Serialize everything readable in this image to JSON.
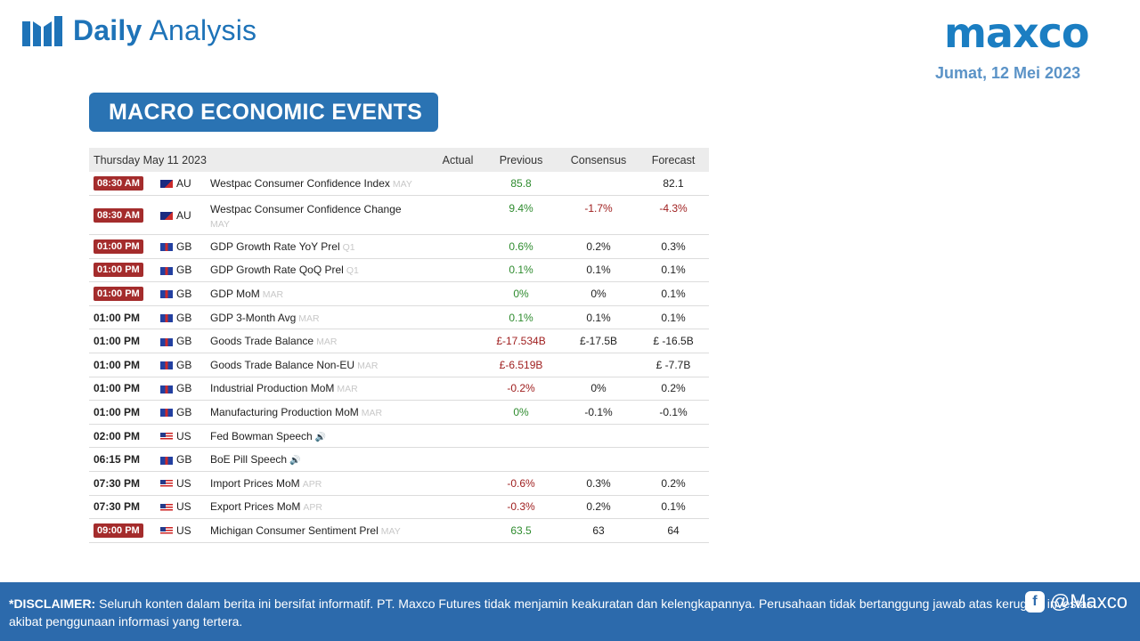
{
  "header": {
    "title_bold": "Daily",
    "title_light": "Analysis",
    "logo": "maxco",
    "date": "Jumat, 12 Mei 2023"
  },
  "section_title": "MACRO ECONOMIC EVENTS",
  "calendar": {
    "date_header": "Thursday May 11 2023",
    "columns": [
      "Actual",
      "Previous",
      "Consensus",
      "Forecast"
    ],
    "rows": [
      {
        "time": "08:30 AM",
        "time_style": "badge",
        "country": "AU",
        "event": "Westpac Consumer Confidence Index",
        "period": "MAY",
        "actual": "",
        "previous": "85.8",
        "consensus": "",
        "forecast": "82.1"
      },
      {
        "time": "08:30 AM",
        "time_style": "badge",
        "country": "AU",
        "event": "Westpac Consumer Confidence Change",
        "period": "MAY",
        "actual": "",
        "previous": "9.4%",
        "consensus": "-1.7%",
        "forecast": "-4.3%"
      },
      {
        "time": "01:00 PM",
        "time_style": "badge",
        "country": "GB",
        "event": "GDP Growth Rate YoY Prel",
        "period": "Q1",
        "actual": "",
        "previous": "0.6%",
        "consensus": "0.2%",
        "forecast": "0.3%"
      },
      {
        "time": "01:00 PM",
        "time_style": "badge",
        "country": "GB",
        "event": "GDP Growth Rate QoQ Prel",
        "period": "Q1",
        "actual": "",
        "previous": "0.1%",
        "consensus": "0.1%",
        "forecast": "0.1%"
      },
      {
        "time": "01:00 PM",
        "time_style": "badge",
        "country": "GB",
        "event": "GDP MoM",
        "period": "MAR",
        "actual": "",
        "previous": "0%",
        "consensus": "0%",
        "forecast": "0.1%"
      },
      {
        "time": "01:00 PM",
        "time_style": "plain",
        "country": "GB",
        "event": "GDP 3-Month Avg",
        "period": "MAR",
        "actual": "",
        "previous": "0.1%",
        "consensus": "0.1%",
        "forecast": "0.1%"
      },
      {
        "time": "01:00 PM",
        "time_style": "plain",
        "country": "GB",
        "event": "Goods Trade Balance",
        "period": "MAR",
        "actual": "",
        "previous": "£-17.534B",
        "consensus": "£-17.5B",
        "forecast": "£ -16.5B"
      },
      {
        "time": "01:00 PM",
        "time_style": "plain",
        "country": "GB",
        "event": "Goods Trade Balance Non-EU",
        "period": "MAR",
        "actual": "",
        "previous": "£-6.519B",
        "consensus": "",
        "forecast": "£ -7.7B"
      },
      {
        "time": "01:00 PM",
        "time_style": "plain",
        "country": "GB",
        "event": "Industrial Production MoM",
        "period": "MAR",
        "actual": "",
        "previous": "-0.2%",
        "consensus": "0%",
        "forecast": "0.2%"
      },
      {
        "time": "01:00 PM",
        "time_style": "plain",
        "country": "GB",
        "event": "Manufacturing Production MoM",
        "period": "MAR",
        "actual": "",
        "previous": "0%",
        "consensus": "-0.1%",
        "forecast": "-0.1%"
      },
      {
        "time": "02:00 PM",
        "time_style": "plain",
        "country": "US",
        "event": "Fed Bowman Speech",
        "period": "",
        "actual": "",
        "previous": "",
        "consensus": "",
        "forecast": ""
      },
      {
        "time": "06:15 PM",
        "time_style": "plain",
        "country": "GB",
        "event": "BoE Pill Speech",
        "period": "",
        "actual": "",
        "previous": "",
        "consensus": "",
        "forecast": ""
      },
      {
        "time": "07:30 PM",
        "time_style": "plain",
        "country": "US",
        "event": "Import Prices MoM",
        "period": "APR",
        "actual": "",
        "previous": "-0.6%",
        "consensus": "0.3%",
        "forecast": "0.2%"
      },
      {
        "time": "07:30 PM",
        "time_style": "plain",
        "country": "US",
        "event": "Export Prices MoM",
        "period": "APR",
        "actual": "",
        "previous": "-0.3%",
        "consensus": "0.2%",
        "forecast": "0.1%"
      },
      {
        "time": "09:00 PM",
        "time_style": "badge",
        "country": "US",
        "event": "Michigan Consumer Sentiment Prel",
        "period": "MAY",
        "actual": "",
        "previous": "63.5",
        "consensus": "63",
        "forecast": "64"
      }
    ]
  },
  "footer": {
    "disclaimer_label": "*DISCLAIMER:",
    "disclaimer_text": " Seluruh konten dalam berita ini bersifat informatif. PT. Maxco Futures tidak menjamin keakuratan dan kelengkapannya. Perusahaan tidak bertanggung jawab atas kerugian investasi akibat penggunaan informasi yang tertera.",
    "social_handle": "@Maxco"
  },
  "colors": {
    "brand_blue": "#1e73b8",
    "footer_blue": "#2c6aac",
    "positive": "#2e8b2e",
    "negative": "#9e1c1c",
    "time_badge": "#a42c2c"
  }
}
